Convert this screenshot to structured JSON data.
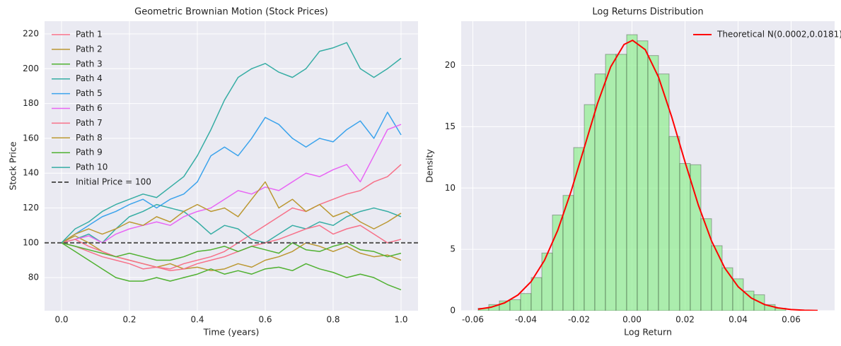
{
  "chart_data": [
    {
      "type": "line",
      "title": "Geometric Brownian Motion (Stock Prices)",
      "xlabel": "Time (years)",
      "ylabel": "Stock Price",
      "x": [
        0,
        0.04,
        0.08,
        0.12,
        0.16,
        0.2,
        0.24,
        0.28,
        0.32,
        0.36,
        0.4,
        0.44,
        0.48,
        0.52,
        0.56,
        0.6,
        0.64,
        0.68,
        0.72,
        0.76,
        0.8,
        0.84,
        0.88,
        0.92,
        0.96,
        1
      ],
      "series": [
        {
          "name": "Path 1",
          "color": "#f77189",
          "values": [
            100,
            98,
            95,
            92,
            90,
            88,
            85,
            86,
            85,
            88,
            90,
            92,
            95,
            100,
            105,
            110,
            115,
            120,
            118,
            122,
            125,
            128,
            130,
            135,
            138,
            145
          ]
        },
        {
          "name": "Path 2",
          "color": "#bb9832",
          "values": [
            100,
            104,
            100,
            95,
            92,
            90,
            88,
            86,
            88,
            85,
            86,
            84,
            85,
            88,
            86,
            90,
            92,
            95,
            100,
            98,
            95,
            98,
            94,
            92,
            93,
            90
          ]
        },
        {
          "name": "Path 3",
          "color": "#50b131",
          "values": [
            100,
            95,
            90,
            85,
            80,
            78,
            78,
            80,
            78,
            80,
            82,
            85,
            82,
            84,
            82,
            85,
            86,
            84,
            88,
            85,
            83,
            80,
            82,
            80,
            76,
            73
          ]
        },
        {
          "name": "Path 4",
          "color": "#36ada4",
          "values": [
            100,
            102,
            105,
            100,
            108,
            115,
            118,
            122,
            120,
            118,
            112,
            105,
            110,
            108,
            102,
            100,
            105,
            110,
            108,
            112,
            110,
            115,
            118,
            120,
            118,
            115
          ]
        },
        {
          "name": "Path 5",
          "color": "#3ba3ec",
          "values": [
            100,
            105,
            110,
            115,
            118,
            122,
            125,
            120,
            125,
            128,
            135,
            150,
            155,
            150,
            160,
            172,
            168,
            160,
            155,
            160,
            158,
            165,
            170,
            160,
            175,
            162
          ]
        },
        {
          "name": "Path 6",
          "color": "#e866f4",
          "values": [
            100,
            102,
            104,
            100,
            105,
            108,
            110,
            112,
            110,
            115,
            118,
            120,
            125,
            130,
            128,
            132,
            130,
            135,
            140,
            138,
            142,
            145,
            135,
            150,
            165,
            168
          ]
        },
        {
          "name": "Path 7",
          "color": "#f77189",
          "values": [
            100,
            102,
            98,
            95,
            92,
            90,
            88,
            86,
            84,
            85,
            88,
            90,
            92,
            95,
            98,
            100,
            102,
            105,
            108,
            110,
            105,
            108,
            110,
            105,
            100,
            102
          ]
        },
        {
          "name": "Path 8",
          "color": "#bb9832",
          "values": [
            100,
            105,
            108,
            105,
            108,
            112,
            110,
            115,
            112,
            118,
            122,
            118,
            120,
            115,
            125,
            135,
            120,
            125,
            118,
            122,
            115,
            118,
            112,
            108,
            112,
            117
          ]
        },
        {
          "name": "Path 9",
          "color": "#50b131",
          "values": [
            100,
            98,
            96,
            94,
            92,
            94,
            92,
            90,
            90,
            92,
            95,
            96,
            98,
            95,
            98,
            96,
            94,
            100,
            96,
            95,
            98,
            100,
            96,
            95,
            92,
            94
          ]
        },
        {
          "name": "Path 10",
          "color": "#36ada4",
          "values": [
            100,
            108,
            112,
            118,
            122,
            125,
            128,
            126,
            132,
            138,
            150,
            165,
            182,
            195,
            200,
            203,
            198,
            195,
            200,
            210,
            212,
            215,
            200,
            195,
            200,
            206
          ]
        }
      ],
      "hline": {
        "name": "Initial Price = 100",
        "value": 100,
        "color": "#555555"
      },
      "xlim": [
        -0.05,
        1.05
      ],
      "ylim": [
        61,
        227.3
      ],
      "xticks": [
        {
          "value": 0,
          "label": "0.0"
        },
        0.2,
        0.4,
        0.6,
        0.8,
        {
          "value": 1,
          "label": "1.0"
        }
      ],
      "yticks": [
        80,
        100,
        120,
        140,
        160,
        180,
        200,
        220
      ],
      "grid": true,
      "legend": "upper-left"
    },
    {
      "type": "histogram",
      "title": "Log Returns Distribution",
      "xlabel": "Log Return",
      "ylabel": "Density",
      "bins": [
        -0.058,
        -0.054,
        -0.05,
        -0.046,
        -0.042,
        -0.038,
        -0.034,
        -0.03,
        -0.026,
        -0.022,
        -0.018,
        -0.014,
        -0.01,
        -0.006,
        -0.002,
        0.002,
        0.006,
        0.01,
        0.014,
        0.018,
        0.022,
        0.026,
        0.03,
        0.034,
        0.038,
        0.042,
        0.046,
        0.05,
        0.054,
        0.058
      ],
      "values": [
        0.2,
        0.5,
        0.8,
        0.9,
        1.4,
        2.7,
        4.7,
        7.8,
        9.4,
        13.3,
        16.8,
        19.3,
        20.9,
        20.9,
        22.5,
        22.0,
        20.8,
        19.3,
        14.2,
        12.0,
        11.9,
        7.5,
        5.3,
        3.5,
        2.6,
        1.6,
        1.3,
        0.5,
        0.2
      ],
      "color": "#90ee90",
      "curve": {
        "name": "Theoretical N(0.0002,0.0181)",
        "color": "#ff0000",
        "x": [
          -0.058,
          -0.053,
          -0.048,
          -0.043,
          -0.038,
          -0.033,
          -0.028,
          -0.023,
          -0.018,
          -0.013,
          -0.008,
          -0.003,
          0.0002,
          0.005,
          0.01,
          0.015,
          0.02,
          0.025,
          0.03,
          0.035,
          0.04,
          0.045,
          0.05,
          0.055,
          0.06,
          0.065,
          0.07
        ],
        "values": [
          0.125,
          0.29,
          0.64,
          1.28,
          2.38,
          4.1,
          6.55,
          9.7,
          13.29,
          16.89,
          19.89,
          21.7,
          22.04,
          21.28,
          19.04,
          15.78,
          12.12,
          8.62,
          5.68,
          3.47,
          1.96,
          1.03,
          0.5,
          0.23,
          0.094,
          0.036,
          0.013
        ]
      },
      "xlim": [
        -0.0644,
        0.0764
      ],
      "ylim": [
        0,
        23.6
      ],
      "xticks": [
        -0.06,
        -0.04,
        -0.02,
        {
          "value": 0,
          "label": "0.00"
        },
        0.02,
        0.04,
        0.06
      ],
      "yticks": [
        0,
        5,
        10,
        15,
        20
      ],
      "grid": true,
      "legend": "upper-right"
    }
  ]
}
